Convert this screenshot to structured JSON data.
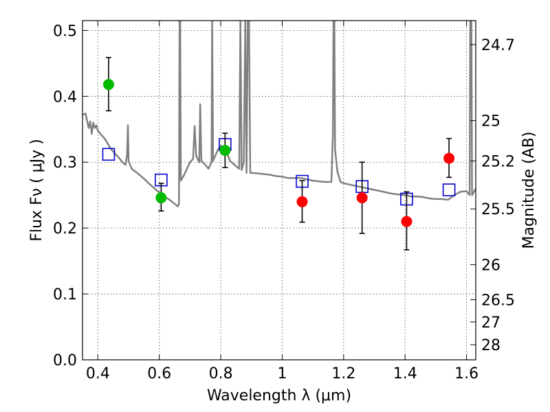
{
  "chart_data": {
    "type": "scatter",
    "title": "",
    "xlabel": "Wavelength  λ (μm)",
    "ylabel": "Flux  Fν  ( μJy )",
    "y2label": "Magnitude (AB)",
    "xlim": [
      0.35,
      1.63
    ],
    "ylim": [
      0.0,
      0.515
    ],
    "grid": true,
    "x_ticks": [
      0.4,
      0.6,
      0.8,
      1.0,
      1.2,
      1.4,
      1.6
    ],
    "x_tick_labels": [
      "0.4",
      "0.6",
      "0.8",
      "1",
      "1.2",
      "1.4",
      "1.6"
    ],
    "y_ticks": [
      0.0,
      0.1,
      0.2,
      0.3,
      0.4,
      0.5
    ],
    "y_tick_labels": [
      "0.0",
      "0.1",
      "0.2",
      "0.3",
      "0.4",
      "0.5"
    ],
    "y2_ticks": [
      {
        "label": "24.7",
        "flux": 0.4786
      },
      {
        "label": "25",
        "flux": 0.3631
      },
      {
        "label": "25.2",
        "flux": 0.302
      },
      {
        "label": "25.5",
        "flux": 0.2291
      },
      {
        "label": "26",
        "flux": 0.1445
      },
      {
        "label": "26.5",
        "flux": 0.0912
      },
      {
        "label": "27",
        "flux": 0.0575
      },
      {
        "label": "28",
        "flux": 0.0229
      }
    ],
    "series": [
      {
        "kind": "points",
        "marker": "circle",
        "color": "#00bb00",
        "points": [
          {
            "x": 0.435,
            "y": 0.418,
            "err_lo": 0.378,
            "err_hi": 0.459
          },
          {
            "x": 0.606,
            "y": 0.246,
            "err_lo": 0.226,
            "err_hi": 0.268
          },
          {
            "x": 0.814,
            "y": 0.318,
            "err_lo": 0.292,
            "err_hi": 0.344
          }
        ]
      },
      {
        "kind": "points",
        "marker": "circle",
        "color": "#ff0000",
        "points": [
          {
            "x": 1.065,
            "y": 0.24,
            "err_lo": 0.209,
            "err_hi": 0.272
          },
          {
            "x": 1.26,
            "y": 0.246,
            "err_lo": 0.192,
            "err_hi": 0.3
          },
          {
            "x": 1.405,
            "y": 0.21,
            "err_lo": 0.167,
            "err_hi": 0.255
          },
          {
            "x": 1.543,
            "y": 0.306,
            "err_lo": 0.277,
            "err_hi": 0.336
          }
        ]
      },
      {
        "kind": "points",
        "marker": "square-open",
        "color": "#0000cc",
        "points": [
          {
            "x": 0.435,
            "y": 0.312
          },
          {
            "x": 0.606,
            "y": 0.273
          },
          {
            "x": 0.814,
            "y": 0.327
          },
          {
            "x": 1.065,
            "y": 0.271
          },
          {
            "x": 1.26,
            "y": 0.263
          },
          {
            "x": 1.405,
            "y": 0.244
          },
          {
            "x": 1.543,
            "y": 0.258
          }
        ]
      },
      {
        "kind": "line",
        "color": "#808080",
        "points": [
          [
            0.35,
            0.372
          ],
          [
            0.36,
            0.374
          ],
          [
            0.37,
            0.352
          ],
          [
            0.375,
            0.362
          ],
          [
            0.38,
            0.343
          ],
          [
            0.385,
            0.36
          ],
          [
            0.39,
            0.352
          ],
          [
            0.395,
            0.356
          ],
          [
            0.4,
            0.348
          ],
          [
            0.41,
            0.342
          ],
          [
            0.42,
            0.337
          ],
          [
            0.43,
            0.33
          ],
          [
            0.44,
            0.322
          ],
          [
            0.45,
            0.316
          ],
          [
            0.46,
            0.311
          ],
          [
            0.47,
            0.306
          ],
          [
            0.48,
            0.3
          ],
          [
            0.49,
            0.296
          ],
          [
            0.495,
            0.312
          ],
          [
            0.498,
            0.356
          ],
          [
            0.5,
            0.302
          ],
          [
            0.51,
            0.29
          ],
          [
            0.53,
            0.283
          ],
          [
            0.55,
            0.275
          ],
          [
            0.57,
            0.266
          ],
          [
            0.59,
            0.258
          ],
          [
            0.61,
            0.25
          ],
          [
            0.63,
            0.244
          ],
          [
            0.65,
            0.237
          ],
          [
            0.66,
            0.233
          ],
          [
            0.664,
            0.236
          ],
          [
            0.666,
            0.515
          ],
          [
            0.668,
            0.515
          ],
          [
            0.67,
            0.272
          ],
          [
            0.68,
            0.28
          ],
          [
            0.69,
            0.29
          ],
          [
            0.7,
            0.3
          ],
          [
            0.71,
            0.305
          ],
          [
            0.715,
            0.355
          ],
          [
            0.72,
            0.31
          ],
          [
            0.73,
            0.3
          ],
          [
            0.733,
            0.388
          ],
          [
            0.737,
            0.302
          ],
          [
            0.75,
            0.296
          ],
          [
            0.76,
            0.29
          ],
          [
            0.77,
            0.3
          ],
          [
            0.772,
            0.515
          ],
          [
            0.775,
            0.302
          ],
          [
            0.79,
            0.318
          ],
          [
            0.8,
            0.325
          ],
          [
            0.81,
            0.322
          ],
          [
            0.82,
            0.315
          ],
          [
            0.83,
            0.302
          ],
          [
            0.84,
            0.298
          ],
          [
            0.85,
            0.294
          ],
          [
            0.86,
            0.29
          ],
          [
            0.864,
            0.515
          ],
          [
            0.868,
            0.288
          ],
          [
            0.875,
            0.3
          ],
          [
            0.88,
            0.515
          ],
          [
            0.884,
            0.284
          ],
          [
            0.888,
            0.515
          ],
          [
            0.892,
            0.515
          ],
          [
            0.896,
            0.284
          ],
          [
            0.92,
            0.283
          ],
          [
            0.94,
            0.282
          ],
          [
            0.96,
            0.281
          ],
          [
            0.98,
            0.279
          ],
          [
            1.0,
            0.278
          ],
          [
            1.02,
            0.276
          ],
          [
            1.04,
            0.276
          ],
          [
            1.06,
            0.276
          ],
          [
            1.08,
            0.274
          ],
          [
            1.1,
            0.272
          ],
          [
            1.12,
            0.271
          ],
          [
            1.14,
            0.27
          ],
          [
            1.16,
            0.27
          ],
          [
            1.165,
            0.34
          ],
          [
            1.167,
            0.515
          ],
          [
            1.17,
            0.515
          ],
          [
            1.172,
            0.32
          ],
          [
            1.18,
            0.285
          ],
          [
            1.19,
            0.27
          ],
          [
            1.2,
            0.268
          ],
          [
            1.22,
            0.266
          ],
          [
            1.24,
            0.264
          ],
          [
            1.26,
            0.262
          ],
          [
            1.28,
            0.26
          ],
          [
            1.3,
            0.258
          ],
          [
            1.32,
            0.256
          ],
          [
            1.34,
            0.254
          ],
          [
            1.36,
            0.252
          ],
          [
            1.38,
            0.251
          ],
          [
            1.4,
            0.25
          ],
          [
            1.42,
            0.248
          ],
          [
            1.44,
            0.248
          ],
          [
            1.46,
            0.247
          ],
          [
            1.48,
            0.245
          ],
          [
            1.5,
            0.244
          ],
          [
            1.52,
            0.244
          ],
          [
            1.54,
            0.243
          ],
          [
            1.56,
            0.25
          ],
          [
            1.58,
            0.255
          ],
          [
            1.6,
            0.256
          ],
          [
            1.61,
            0.25
          ],
          [
            1.612,
            0.515
          ],
          [
            1.616,
            0.515
          ],
          [
            1.618,
            0.25
          ],
          [
            1.63,
            0.26
          ]
        ]
      }
    ]
  }
}
